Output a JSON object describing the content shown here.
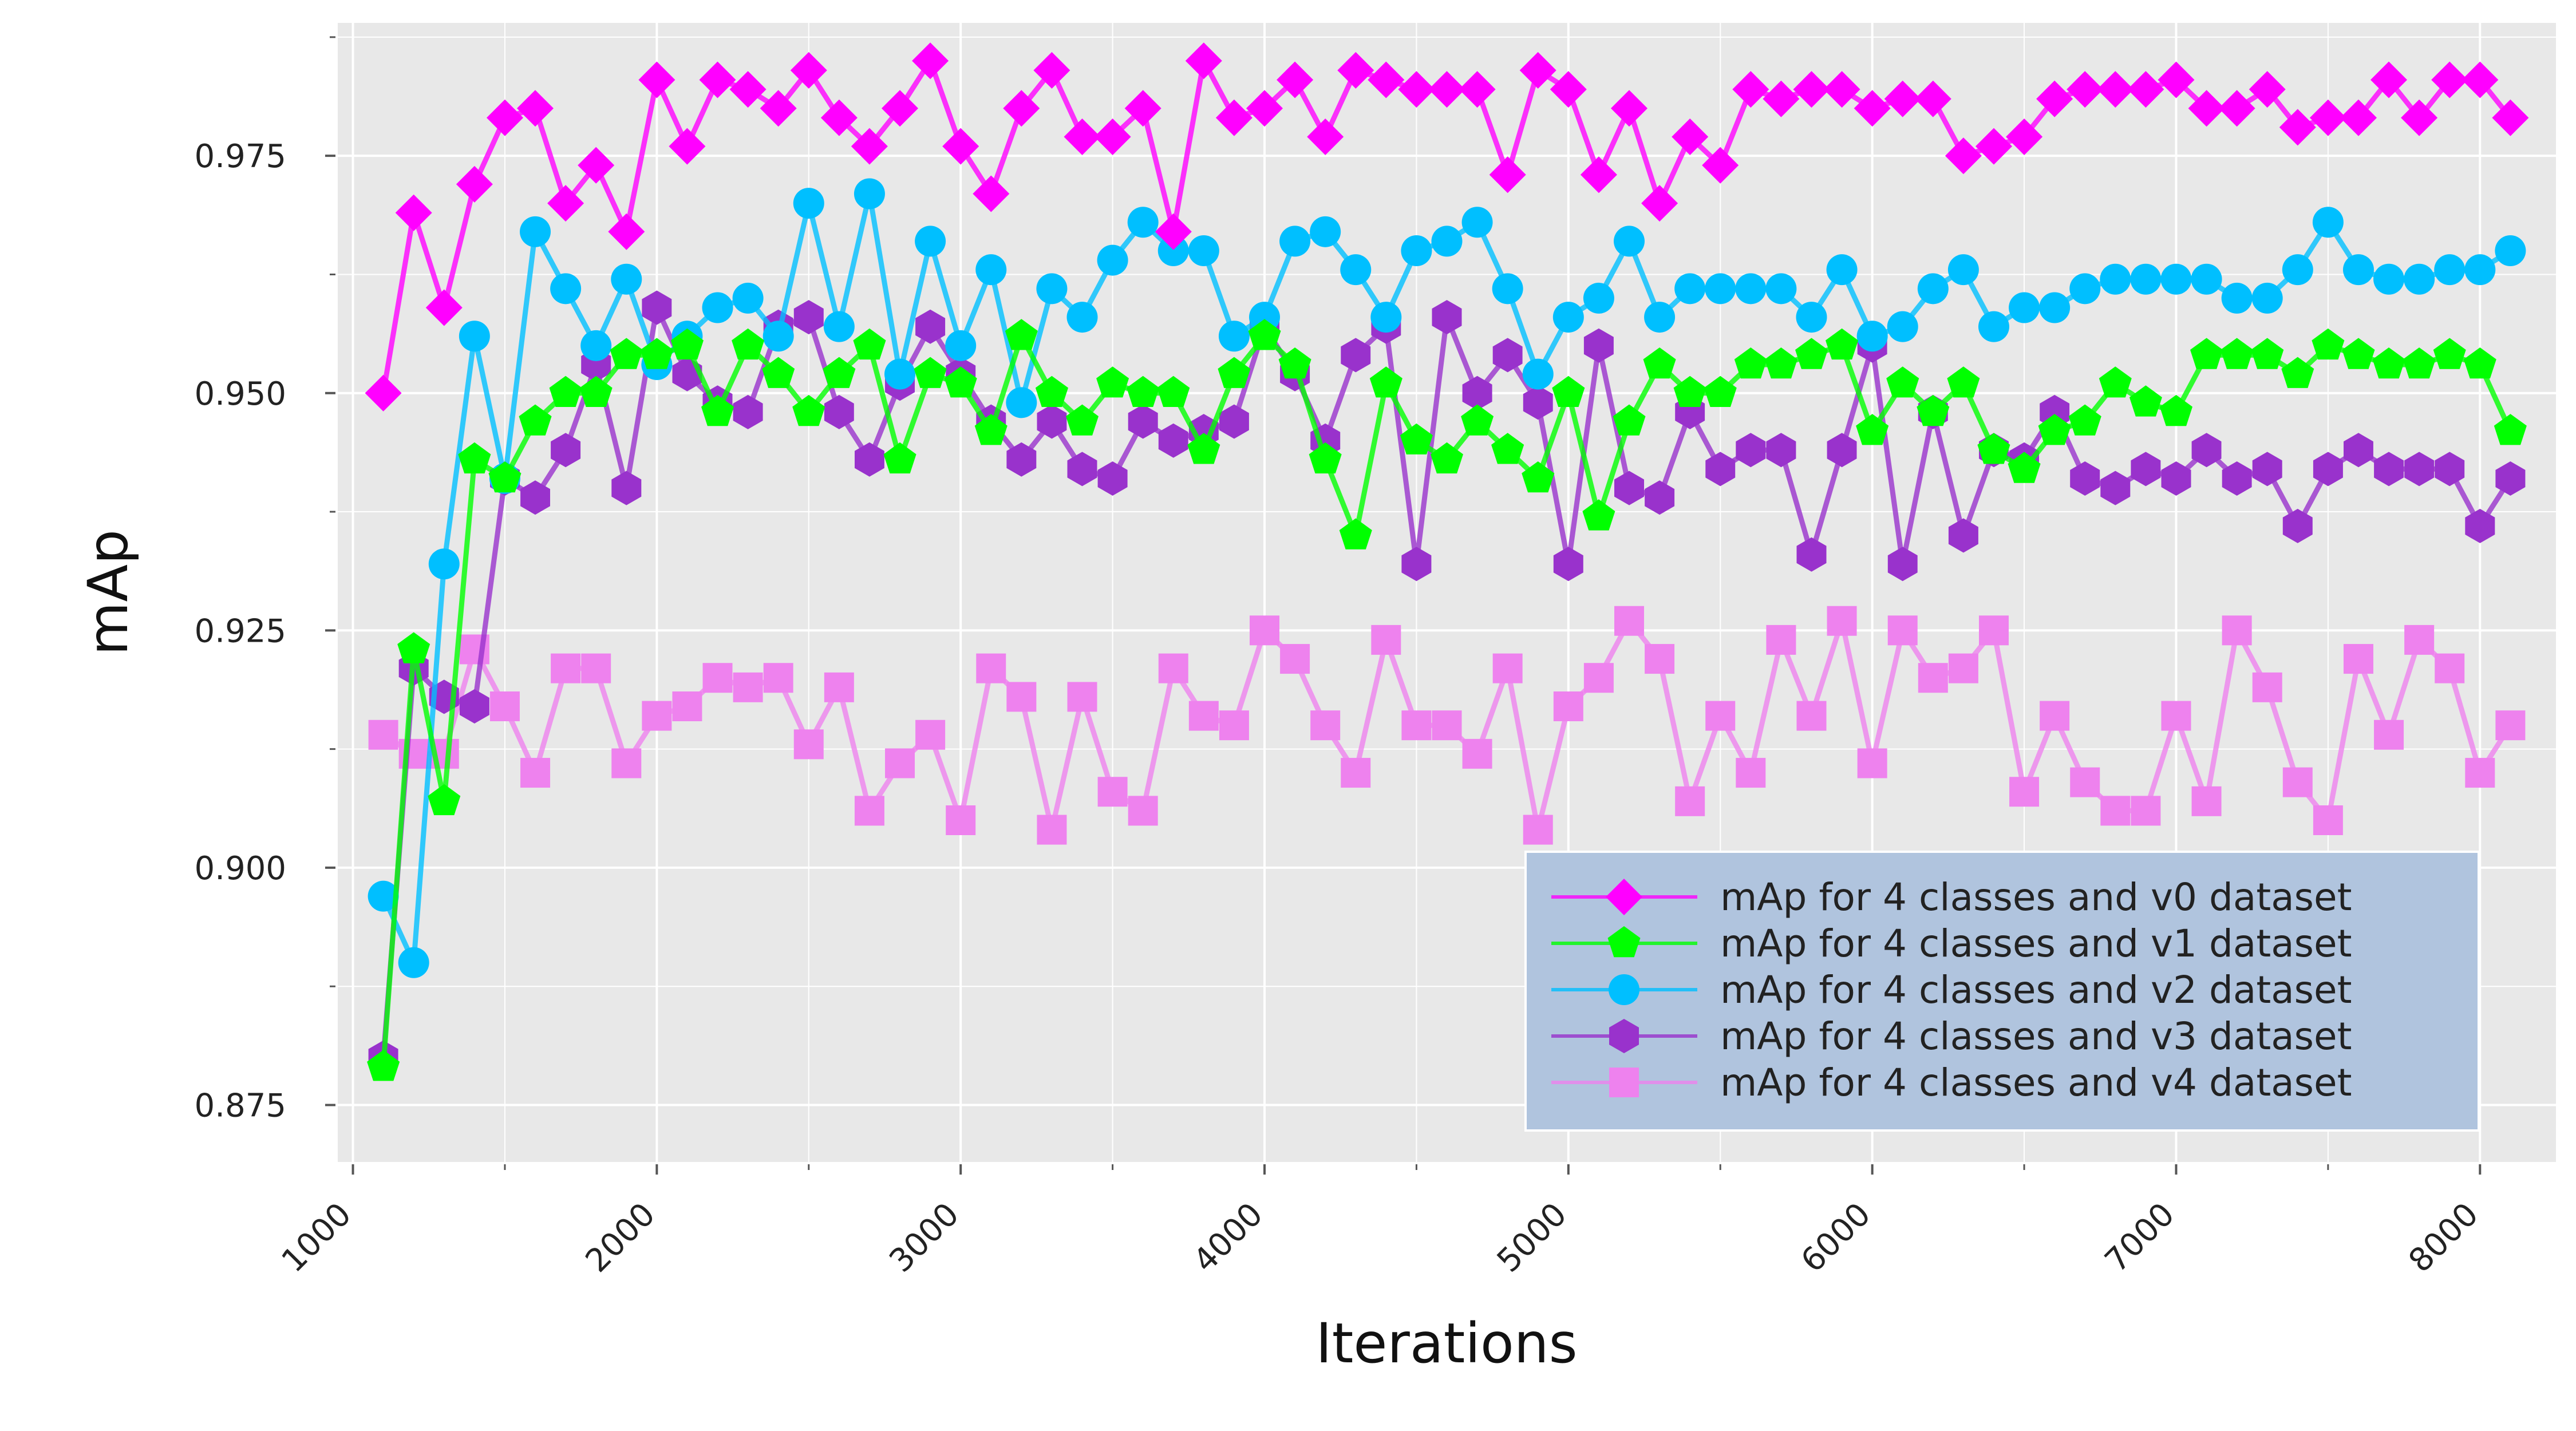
{
  "chart_data": {
    "type": "line",
    "title": "",
    "xlabel": "Iterations",
    "ylabel": "mAp",
    "xlim": [
      950,
      8250
    ],
    "ylim": [
      0.869,
      0.989
    ],
    "xticks": [
      1000,
      2000,
      3000,
      4000,
      5000,
      6000,
      7000,
      8000
    ],
    "xtick_labels": [
      "1000",
      "2000",
      "3000",
      "4000",
      "5000",
      "6000",
      "7000",
      "8000"
    ],
    "yticks": [
      0.875,
      0.9,
      0.925,
      0.95,
      0.975
    ],
    "ytick_labels": [
      "0.875",
      "0.900",
      "0.925",
      "0.950",
      "0.975"
    ],
    "grid": true,
    "legend_position": "lower-right",
    "x": [
      1100,
      1200,
      1300,
      1400,
      1500,
      1600,
      1700,
      1800,
      1900,
      2000,
      2100,
      2200,
      2300,
      2400,
      2500,
      2600,
      2700,
      2800,
      2900,
      3000,
      3100,
      3200,
      3300,
      3400,
      3500,
      3600,
      3700,
      3800,
      3900,
      4000,
      4100,
      4200,
      4300,
      4400,
      4500,
      4600,
      4700,
      4800,
      4900,
      5000,
      5100,
      5200,
      5300,
      5400,
      5500,
      5600,
      5700,
      5800,
      5900,
      6000,
      6100,
      6200,
      6300,
      6400,
      6500,
      6600,
      6700,
      6800,
      6900,
      7000,
      7100,
      7200,
      7300,
      7400,
      7500,
      7600,
      7700,
      7800,
      7900,
      8000,
      8100
    ],
    "series": [
      {
        "name": "mAp for 4 classes and v0 dataset",
        "color": "#ff00ff",
        "marker": "diamond",
        "values": [
          0.95,
          0.969,
          0.959,
          0.972,
          0.979,
          0.98,
          0.97,
          0.974,
          0.967,
          0.983,
          0.976,
          0.983,
          0.982,
          0.98,
          0.984,
          0.979,
          0.976,
          0.98,
          0.985,
          0.976,
          0.971,
          0.98,
          0.984,
          0.977,
          0.977,
          0.98,
          0.967,
          0.985,
          0.979,
          0.98,
          0.983,
          0.977,
          0.984,
          0.983,
          0.982,
          0.982,
          0.982,
          0.973,
          0.984,
          0.982,
          0.973,
          0.98,
          0.97,
          0.977,
          0.974,
          0.982,
          0.981,
          0.982,
          0.982,
          0.98,
          0.981,
          0.981,
          0.975,
          0.976,
          0.977,
          0.981,
          0.982,
          0.982,
          0.982,
          0.983,
          0.98,
          0.98,
          0.982,
          0.978,
          0.979,
          0.979,
          0.983,
          0.979,
          0.983,
          0.983,
          0.979
        ]
      },
      {
        "name": "mAp for 4 classes and v1 dataset",
        "color": "#00ff00",
        "marker": "pentagon",
        "values": [
          0.879,
          0.923,
          0.907,
          0.943,
          0.941,
          0.947,
          0.95,
          0.95,
          0.954,
          0.954,
          0.955,
          0.948,
          0.955,
          0.952,
          0.948,
          0.952,
          0.955,
          0.943,
          0.952,
          0.951,
          0.946,
          0.956,
          0.95,
          0.947,
          0.951,
          0.95,
          0.95,
          0.944,
          0.952,
          0.956,
          0.953,
          0.943,
          0.935,
          0.951,
          0.945,
          0.943,
          0.947,
          0.944,
          0.941,
          0.95,
          0.937,
          0.947,
          0.953,
          0.95,
          0.95,
          0.953,
          0.953,
          0.954,
          0.955,
          0.946,
          0.951,
          0.948,
          0.951,
          0.944,
          0.942,
          0.946,
          0.947,
          0.951,
          0.949,
          0.948,
          0.954,
          0.954,
          0.954,
          0.952,
          0.955,
          0.954,
          0.953,
          0.953,
          0.954,
          0.953,
          0.946
        ]
      },
      {
        "name": "mAp for 4 classes and v2 dataset",
        "color": "#00bfff",
        "marker": "circle",
        "values": [
          0.897,
          0.89,
          0.932,
          0.956,
          0.941,
          0.967,
          0.961,
          0.955,
          0.962,
          0.953,
          0.956,
          0.959,
          0.96,
          0.956,
          0.97,
          0.957,
          0.971,
          0.952,
          0.966,
          0.955,
          0.963,
          0.949,
          0.961,
          0.958,
          0.964,
          0.968,
          0.965,
          0.965,
          0.956,
          0.958,
          0.966,
          0.967,
          0.963,
          0.958,
          0.965,
          0.966,
          0.968,
          0.961,
          0.952,
          0.958,
          0.96,
          0.966,
          0.958,
          0.961,
          0.961,
          0.961,
          0.961,
          0.958,
          0.963,
          0.956,
          0.957,
          0.961,
          0.963,
          0.957,
          0.959,
          0.959,
          0.961,
          0.962,
          0.962,
          0.962,
          0.962,
          0.96,
          0.96,
          0.963,
          0.968,
          0.963,
          0.962,
          0.962,
          0.963,
          0.963,
          0.965
        ]
      },
      {
        "name": "mAp for 4 classes and v3 dataset",
        "color": "#9932cc",
        "marker": "hexagon",
        "values": [
          0.88,
          0.921,
          0.918,
          0.917,
          0.941,
          0.939,
          0.944,
          0.953,
          0.94,
          0.959,
          0.952,
          0.949,
          0.948,
          0.957,
          0.958,
          0.948,
          0.943,
          0.951,
          0.957,
          0.952,
          0.947,
          0.943,
          0.947,
          0.942,
          0.941,
          0.947,
          0.945,
          0.946,
          0.947,
          0.957,
          0.952,
          0.945,
          0.954,
          0.957,
          0.932,
          0.958,
          0.95,
          0.954,
          0.949,
          0.932,
          0.955,
          0.94,
          0.939,
          0.948,
          0.942,
          0.944,
          0.944,
          0.933,
          0.944,
          0.955,
          0.932,
          0.948,
          0.935,
          0.944,
          0.943,
          0.948,
          0.941,
          0.94,
          0.942,
          0.941,
          0.944,
          0.941,
          0.942,
          0.936,
          0.942,
          0.944,
          0.942,
          0.942,
          0.942,
          0.936,
          0.941
        ]
      },
      {
        "name": "mAp for 4 classes and v4 dataset",
        "color": "#ee82ee",
        "marker": "square",
        "values": [
          0.914,
          0.912,
          0.912,
          0.923,
          0.917,
          0.91,
          0.921,
          0.921,
          0.911,
          0.916,
          0.917,
          0.92,
          0.919,
          0.92,
          0.913,
          0.919,
          0.906,
          0.911,
          0.914,
          0.905,
          0.921,
          0.918,
          0.904,
          0.918,
          0.908,
          0.906,
          0.921,
          0.916,
          0.915,
          0.925,
          0.922,
          0.915,
          0.91,
          0.924,
          0.915,
          0.915,
          0.912,
          0.921,
          0.904,
          0.917,
          0.92,
          0.926,
          0.922,
          0.907,
          0.916,
          0.91,
          0.924,
          0.916,
          0.926,
          0.911,
          0.925,
          0.92,
          0.921,
          0.925,
          0.908,
          0.916,
          0.909,
          0.906,
          0.906,
          0.916,
          0.907,
          0.925,
          0.919,
          0.909,
          0.905,
          0.922,
          0.914,
          0.924,
          0.921,
          0.91,
          0.915
        ]
      }
    ]
  }
}
